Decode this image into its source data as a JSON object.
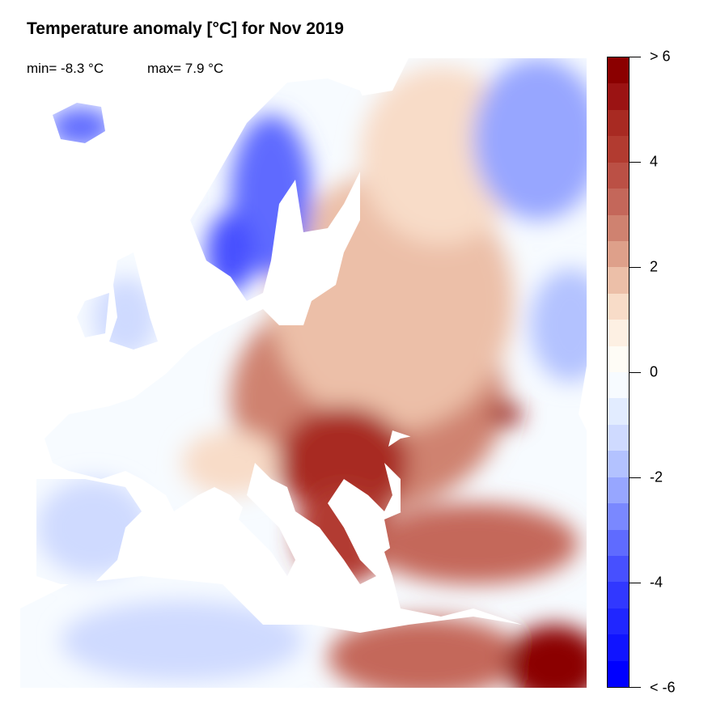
{
  "title": "Temperature anomaly [°C] for Nov 2019",
  "stats": {
    "min": "min= -8.3 °C",
    "max": "max= 7.9 °C"
  },
  "colorbar": {
    "range": [
      -6,
      6
    ],
    "step": 0.5,
    "tick_labels": [
      {
        "value": 6,
        "label": "> 6"
      },
      {
        "value": 4,
        "label": "4"
      },
      {
        "value": 2,
        "label": "2"
      },
      {
        "value": 0,
        "label": "0"
      },
      {
        "value": -2,
        "label": "-2"
      },
      {
        "value": -4,
        "label": "-4"
      },
      {
        "value": -6,
        "label": "< -6"
      }
    ],
    "colors_top_to_bottom": [
      "#8b0000",
      "#9b1313",
      "#a82a22",
      "#b23b30",
      "#bb5045",
      "#c4675a",
      "#cf8270",
      "#dea08a",
      "#ecbfa8",
      "#f8dcc8",
      "#fdf0e3",
      "#fefcf6",
      "#f7fbff",
      "#e2ecff",
      "#cfdaff",
      "#b3c2ff",
      "#97a6ff",
      "#7a88ff",
      "#5f6bff",
      "#4750ff",
      "#3138ff",
      "#2026ff",
      "#1014ff",
      "#0000ff"
    ]
  },
  "map": {
    "region": "Europe",
    "sea_color": "#ffffff",
    "border_color": "#000000"
  }
}
